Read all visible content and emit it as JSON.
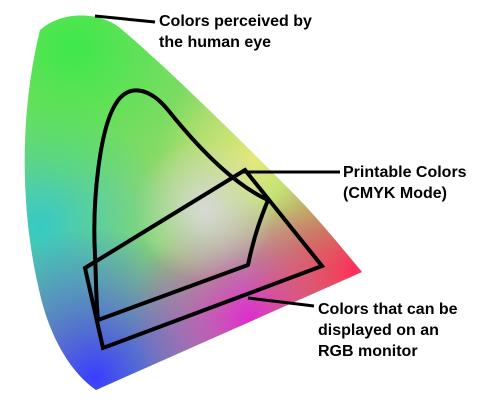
{
  "title": "",
  "callouts": {
    "human_eye": {
      "line1": "Colors perceived by",
      "line2": "the human eye"
    },
    "printable": {
      "line1": "Printable Colors",
      "line2": "(CMYK Mode)"
    },
    "rgb_monitor": {
      "line1": "Colors that can be",
      "line2": "displayed on an",
      "line3": "RGB monitor"
    }
  },
  "colors": {
    "outline": "#000000",
    "background": "#ffffff",
    "gamut_green": "#3ee84a",
    "gamut_cyan": "#35c9c4",
    "gamut_blue": "#3a3dff",
    "gamut_magenta": "#e02ad0",
    "gamut_red": "#ff2c5a",
    "gamut_yellow": "#e6e87a",
    "gamut_white": "#d8d8d8"
  },
  "regions": [
    "human-eye-gamut",
    "cmyk-gamut",
    "rgb-gamut"
  ]
}
